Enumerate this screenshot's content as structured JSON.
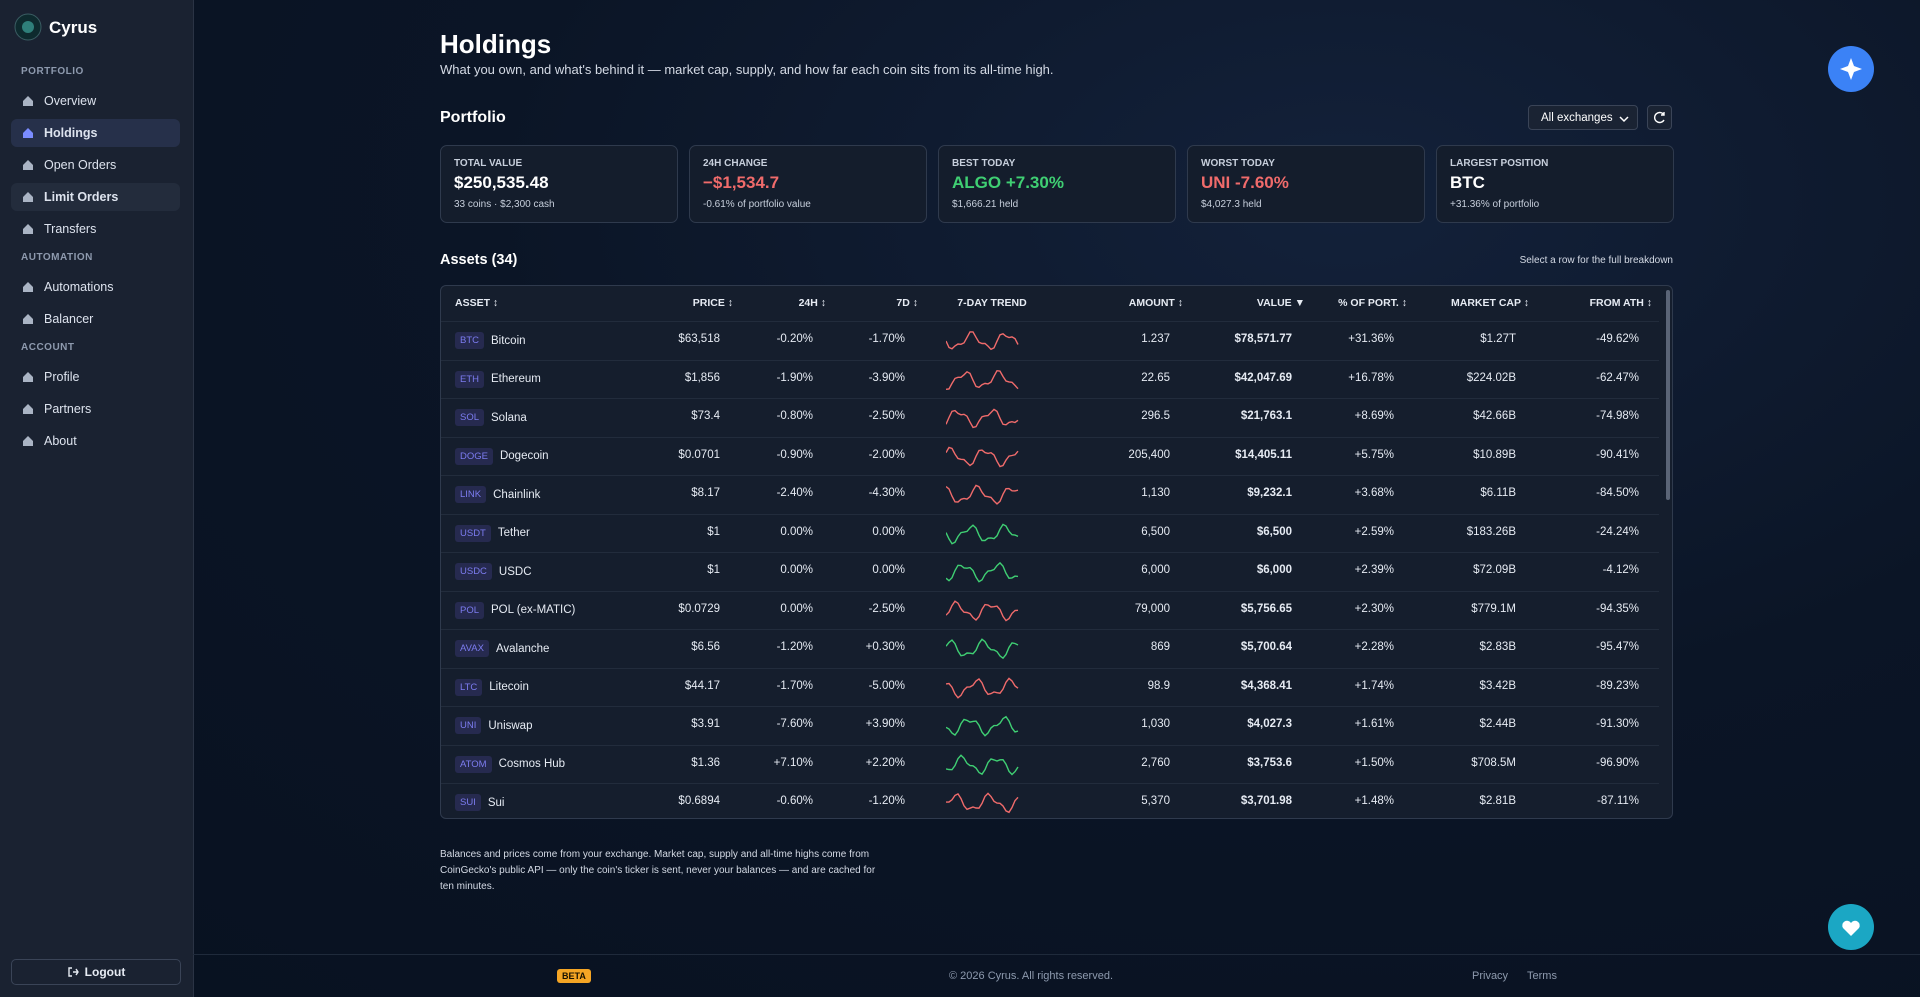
{
  "sidebar": {
    "brand": "Cyrus",
    "sections": [
      {
        "label": "PORTFOLIO",
        "items": [
          "Overview",
          "Holdings",
          "Open Orders",
          "Limit Orders",
          "Transfers"
        ]
      },
      {
        "label": "AUTOMATION",
        "items": [
          "Automations",
          "Balancer"
        ]
      },
      {
        "label": "ACCOUNT",
        "items": [
          "Profile",
          "Partners",
          "About"
        ]
      }
    ],
    "logout": "Logout"
  },
  "header": {
    "title": "Holdings",
    "subtitle": "What you own, and what's behind it — market cap, supply, and how far each coin sits from its all-time high."
  },
  "portfolio": {
    "title": "Portfolio",
    "exchange_select": "All exchanges",
    "cards": [
      {
        "label": "TOTAL VALUE",
        "value": "$250,535.48",
        "note": "33 coins · $2,300 cash"
      },
      {
        "label": "24H CHANGE",
        "value": "−$1,534.7",
        "note": "-0.61% of portfolio value"
      },
      {
        "label": "BEST TODAY",
        "value": "ALGO +7.30%",
        "note": "$1,666.21 held"
      },
      {
        "label": "WORST TODAY",
        "value": "UNI -7.60%",
        "note": "$4,027.3 held"
      },
      {
        "label": "LARGEST POSITION",
        "value": "BTC",
        "note": "+31.36% of portfolio"
      }
    ]
  },
  "assets": {
    "title": "Assets (34)",
    "hint": "Select a row for the full breakdown",
    "columns": [
      "ASSET ↕",
      "PRICE ↕",
      "24H ↕",
      "7D ↕",
      "7-DAY TREND",
      "AMOUNT ↕",
      "VALUE ▼",
      "% OF PORT. ↕",
      "MARKET CAP ↕",
      "FROM ATH ↕"
    ],
    "rows": [
      [
        "BTC",
        "Bitcoin",
        "$63,518",
        "-0.20%",
        "-1.70%",
        "1.237",
        "$78,571.77",
        "+31.36%",
        "$1.27T",
        "-49.62%"
      ],
      [
        "ETH",
        "Ethereum",
        "$1,856",
        "-1.90%",
        "-3.90%",
        "22.65",
        "$42,047.69",
        "+16.78%",
        "$224.02B",
        "-62.47%"
      ],
      [
        "SOL",
        "Solana",
        "$73.4",
        "-0.80%",
        "-2.50%",
        "296.5",
        "$21,763.1",
        "+8.69%",
        "$42.66B",
        "-74.98%"
      ],
      [
        "DOGE",
        "Dogecoin",
        "$0.0701",
        "-0.90%",
        "-2.00%",
        "205,400",
        "$14,405.11",
        "+5.75%",
        "$10.89B",
        "-90.41%"
      ],
      [
        "LINK",
        "Chainlink",
        "$8.17",
        "-2.40%",
        "-4.30%",
        "1,130",
        "$9,232.1",
        "+3.68%",
        "$6.11B",
        "-84.50%"
      ],
      [
        "USDT",
        "Tether",
        "$1",
        "0.00%",
        "0.00%",
        "6,500",
        "$6,500",
        "+2.59%",
        "$183.26B",
        "-24.24%"
      ],
      [
        "USDC",
        "USDC",
        "$1",
        "0.00%",
        "0.00%",
        "6,000",
        "$6,000",
        "+2.39%",
        "$72.09B",
        "-4.12%"
      ],
      [
        "POL",
        "POL (ex-MATIC)",
        "$0.0729",
        "0.00%",
        "-2.50%",
        "79,000",
        "$5,756.65",
        "+2.30%",
        "$779.1M",
        "-94.35%"
      ],
      [
        "AVAX",
        "Avalanche",
        "$6.56",
        "-1.20%",
        "+0.30%",
        "869",
        "$5,700.64",
        "+2.28%",
        "$2.83B",
        "-95.47%"
      ],
      [
        "LTC",
        "Litecoin",
        "$44.17",
        "-1.70%",
        "-5.00%",
        "98.9",
        "$4,368.41",
        "+1.74%",
        "$3.42B",
        "-89.23%"
      ],
      [
        "UNI",
        "Uniswap",
        "$3.91",
        "-7.60%",
        "+3.90%",
        "1,030",
        "$4,027.3",
        "+1.61%",
        "$2.44B",
        "-91.30%"
      ],
      [
        "ATOM",
        "Cosmos Hub",
        "$1.36",
        "+7.10%",
        "+2.20%",
        "2,760",
        "$3,753.6",
        "+1.50%",
        "$708.5M",
        "-96.90%"
      ],
      [
        "SUI",
        "Sui",
        "$0.6894",
        "-0.60%",
        "-1.20%",
        "5,370",
        "$3,701.98",
        "+1.48%",
        "$2.81B",
        "-87.11%"
      ]
    ]
  },
  "footnote": "Balances and prices come from your exchange. Market cap, supply and all-time highs come from CoinGecko's public API — only the coin's ticker is sent, never your balances — and are cached for ten minutes.",
  "footer": {
    "badge": "BETA",
    "copyright": "© 2026 Cyrus. All rights reserved.",
    "links": [
      "Privacy",
      "Terms"
    ]
  }
}
